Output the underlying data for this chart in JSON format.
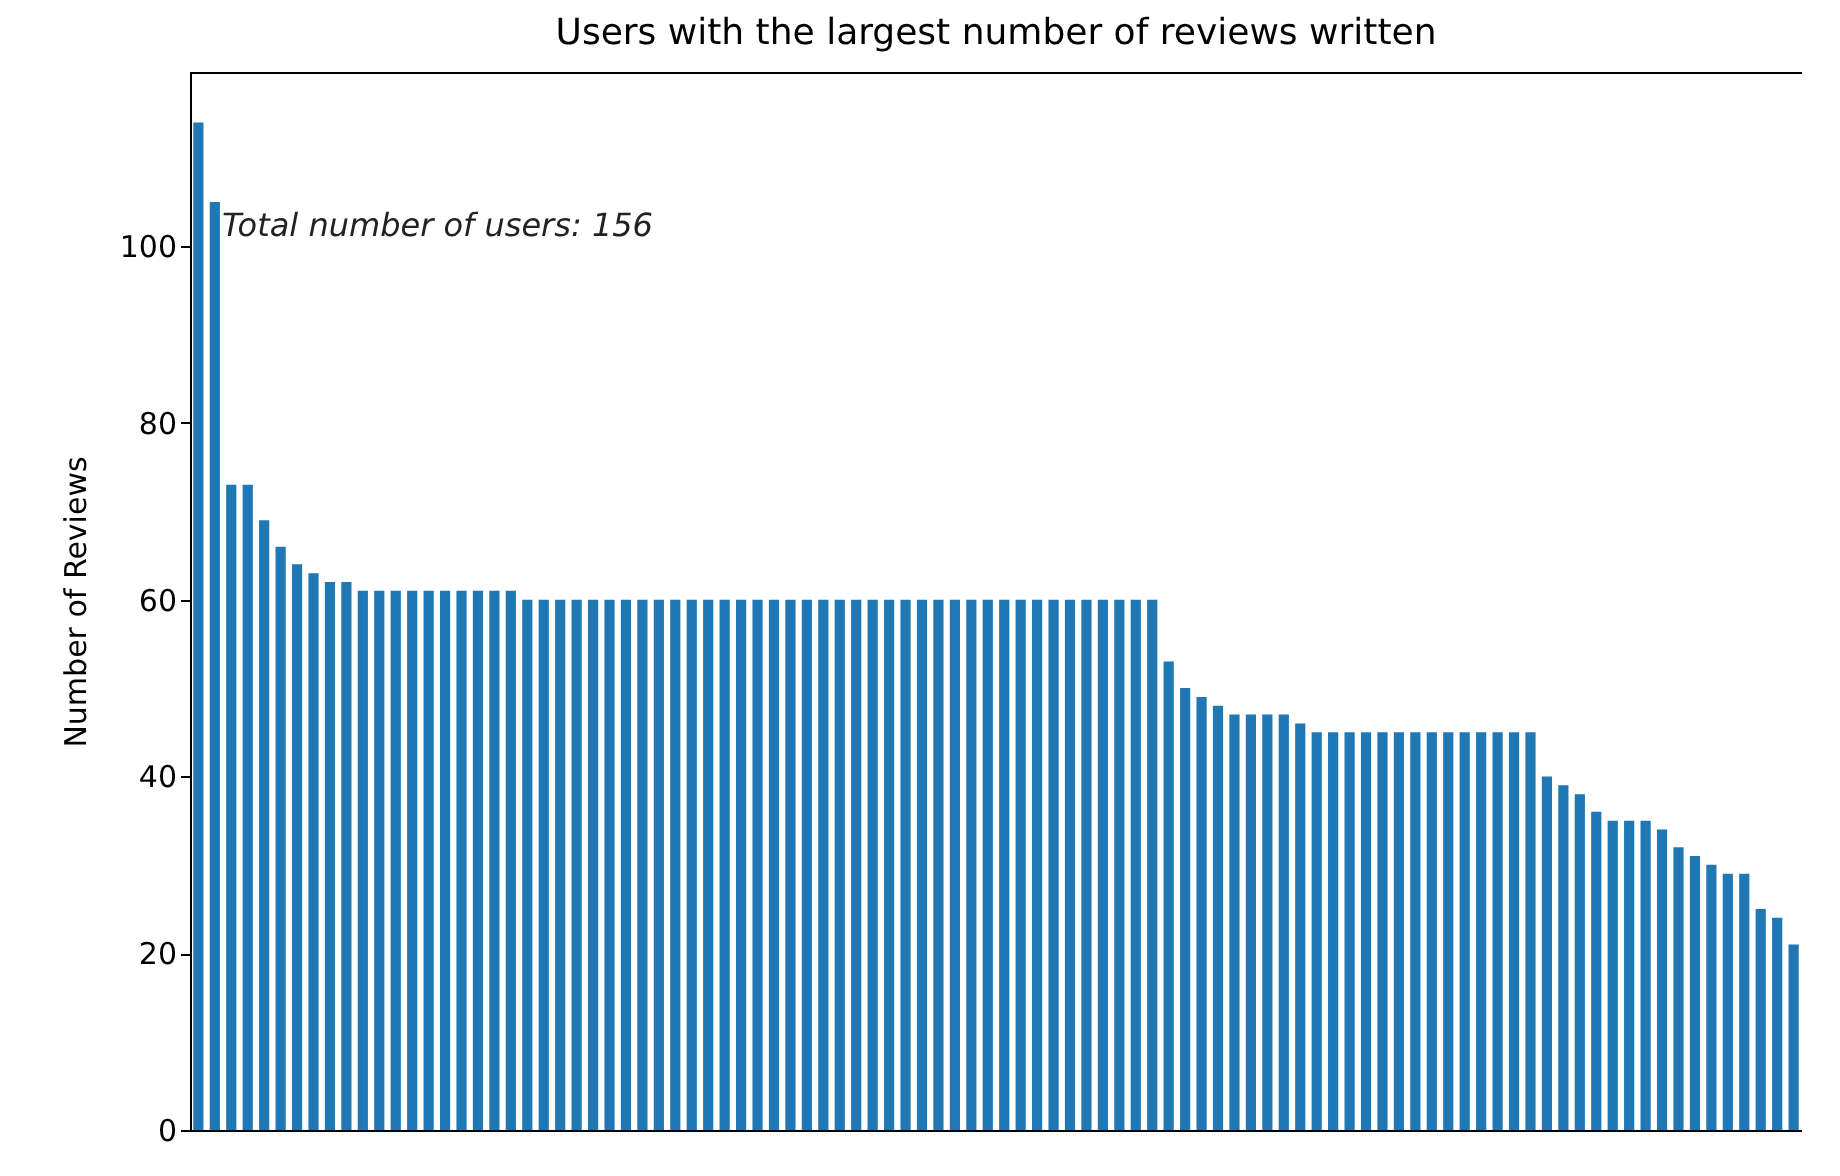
{
  "chart_data": {
    "type": "bar",
    "title": "Users with the largest number of reviews written",
    "ylabel": "Number of Reviews",
    "annotations": [
      "Total number of users: 156"
    ],
    "categories": [
      null,
      null,
      null,
      null,
      null,
      null,
      null,
      null,
      null,
      null,
      null,
      null,
      null,
      null,
      null,
      null,
      null,
      null,
      null,
      null,
      null,
      null,
      null,
      null,
      null,
      null,
      null,
      null,
      null,
      null,
      null,
      null,
      null,
      null,
      null,
      null,
      null,
      null,
      null,
      null,
      null,
      null,
      null,
      null,
      null,
      null,
      null,
      null,
      null,
      null,
      null,
      null,
      null,
      null,
      null,
      null,
      null,
      null,
      null,
      null,
      null,
      null,
      null,
      null,
      null,
      null,
      null,
      null,
      null,
      null,
      null,
      null,
      null,
      null,
      null,
      null,
      null,
      null,
      null,
      null,
      null,
      null,
      null,
      null,
      null,
      null,
      null,
      null,
      null,
      null,
      null,
      null,
      null,
      null,
      null,
      null,
      null,
      null
    ],
    "values": [
      114,
      105,
      73,
      73,
      69,
      66,
      64,
      63,
      62,
      62,
      61,
      61,
      61,
      61,
      61,
      61,
      61,
      61,
      61,
      61,
      60,
      60,
      60,
      60,
      60,
      60,
      60,
      60,
      60,
      60,
      60,
      60,
      60,
      60,
      60,
      60,
      60,
      60,
      60,
      60,
      60,
      60,
      60,
      60,
      60,
      60,
      60,
      60,
      60,
      60,
      60,
      60,
      60,
      60,
      60,
      60,
      60,
      60,
      60,
      53,
      50,
      49,
      48,
      47,
      47,
      47,
      47,
      46,
      45,
      45,
      45,
      45,
      45,
      45,
      45,
      45,
      45,
      45,
      45,
      45,
      45,
      45,
      40,
      39,
      38,
      36,
      35,
      35,
      35,
      34,
      32,
      31,
      30,
      29,
      29,
      25,
      24,
      21
    ],
    "color": "#1f77b4",
    "ylim": [
      0,
      119.7
    ],
    "yticks": [
      0,
      20,
      40,
      60,
      80,
      100
    ],
    "grid": false,
    "tick_labels": "y"
  }
}
